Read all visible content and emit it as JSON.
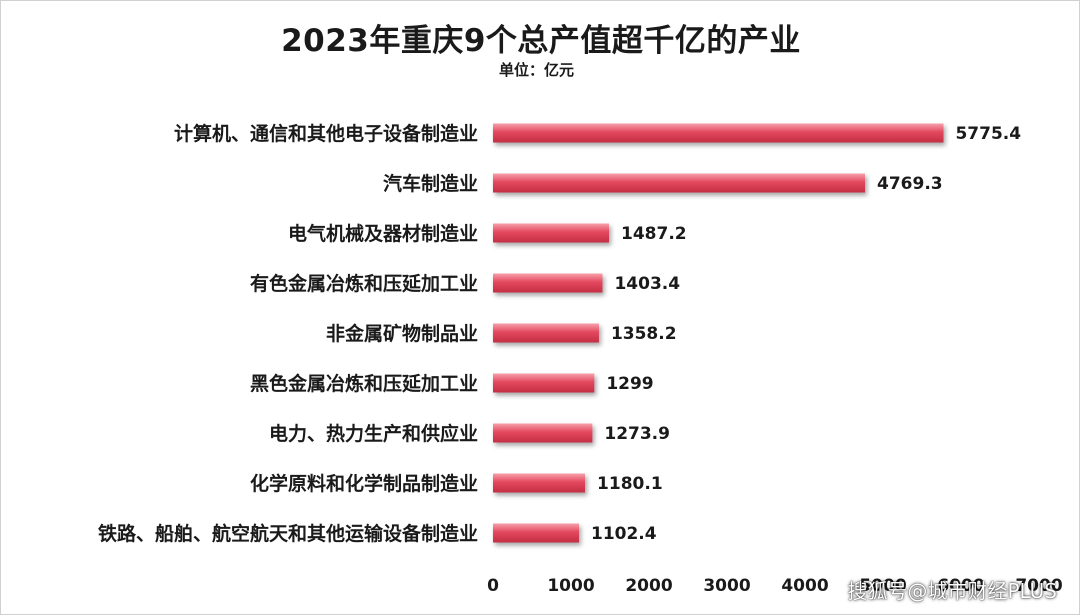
{
  "chart_data": {
    "type": "bar",
    "orientation": "horizontal",
    "title": "2023年重庆9个总产值超千亿的产业",
    "subtitle": "单位：亿元",
    "categories": [
      "计算机、通信和其他电子设备制造业",
      "汽车制造业",
      "电气机械及器材制造业",
      "有色金属冶炼和压延加工业",
      "非金属矿物制品业",
      "黑色金属冶炼和压延加工业",
      "电力、热力生产和供应业",
      "化学原料和化学制品制造业",
      "铁路、船舶、航空航天和其他运输设备制造业"
    ],
    "values": [
      5775.4,
      4769.3,
      1487.2,
      1403.4,
      1358.2,
      1299,
      1273.9,
      1180.1,
      1102.4
    ],
    "value_labels": [
      "5775.4",
      "4769.3",
      "1487.2",
      "1403.4",
      "1358.2",
      "1299",
      "1273.9",
      "1180.1",
      "1102.4"
    ],
    "xlim": [
      0,
      7000
    ],
    "x_ticks": [
      "0",
      "1000",
      "2000",
      "3000",
      "4000",
      "5000",
      "6000",
      "7000"
    ],
    "grid": false,
    "bar_color": "#e04a5f"
  },
  "watermark": "搜狐号@城市财经PLUS"
}
